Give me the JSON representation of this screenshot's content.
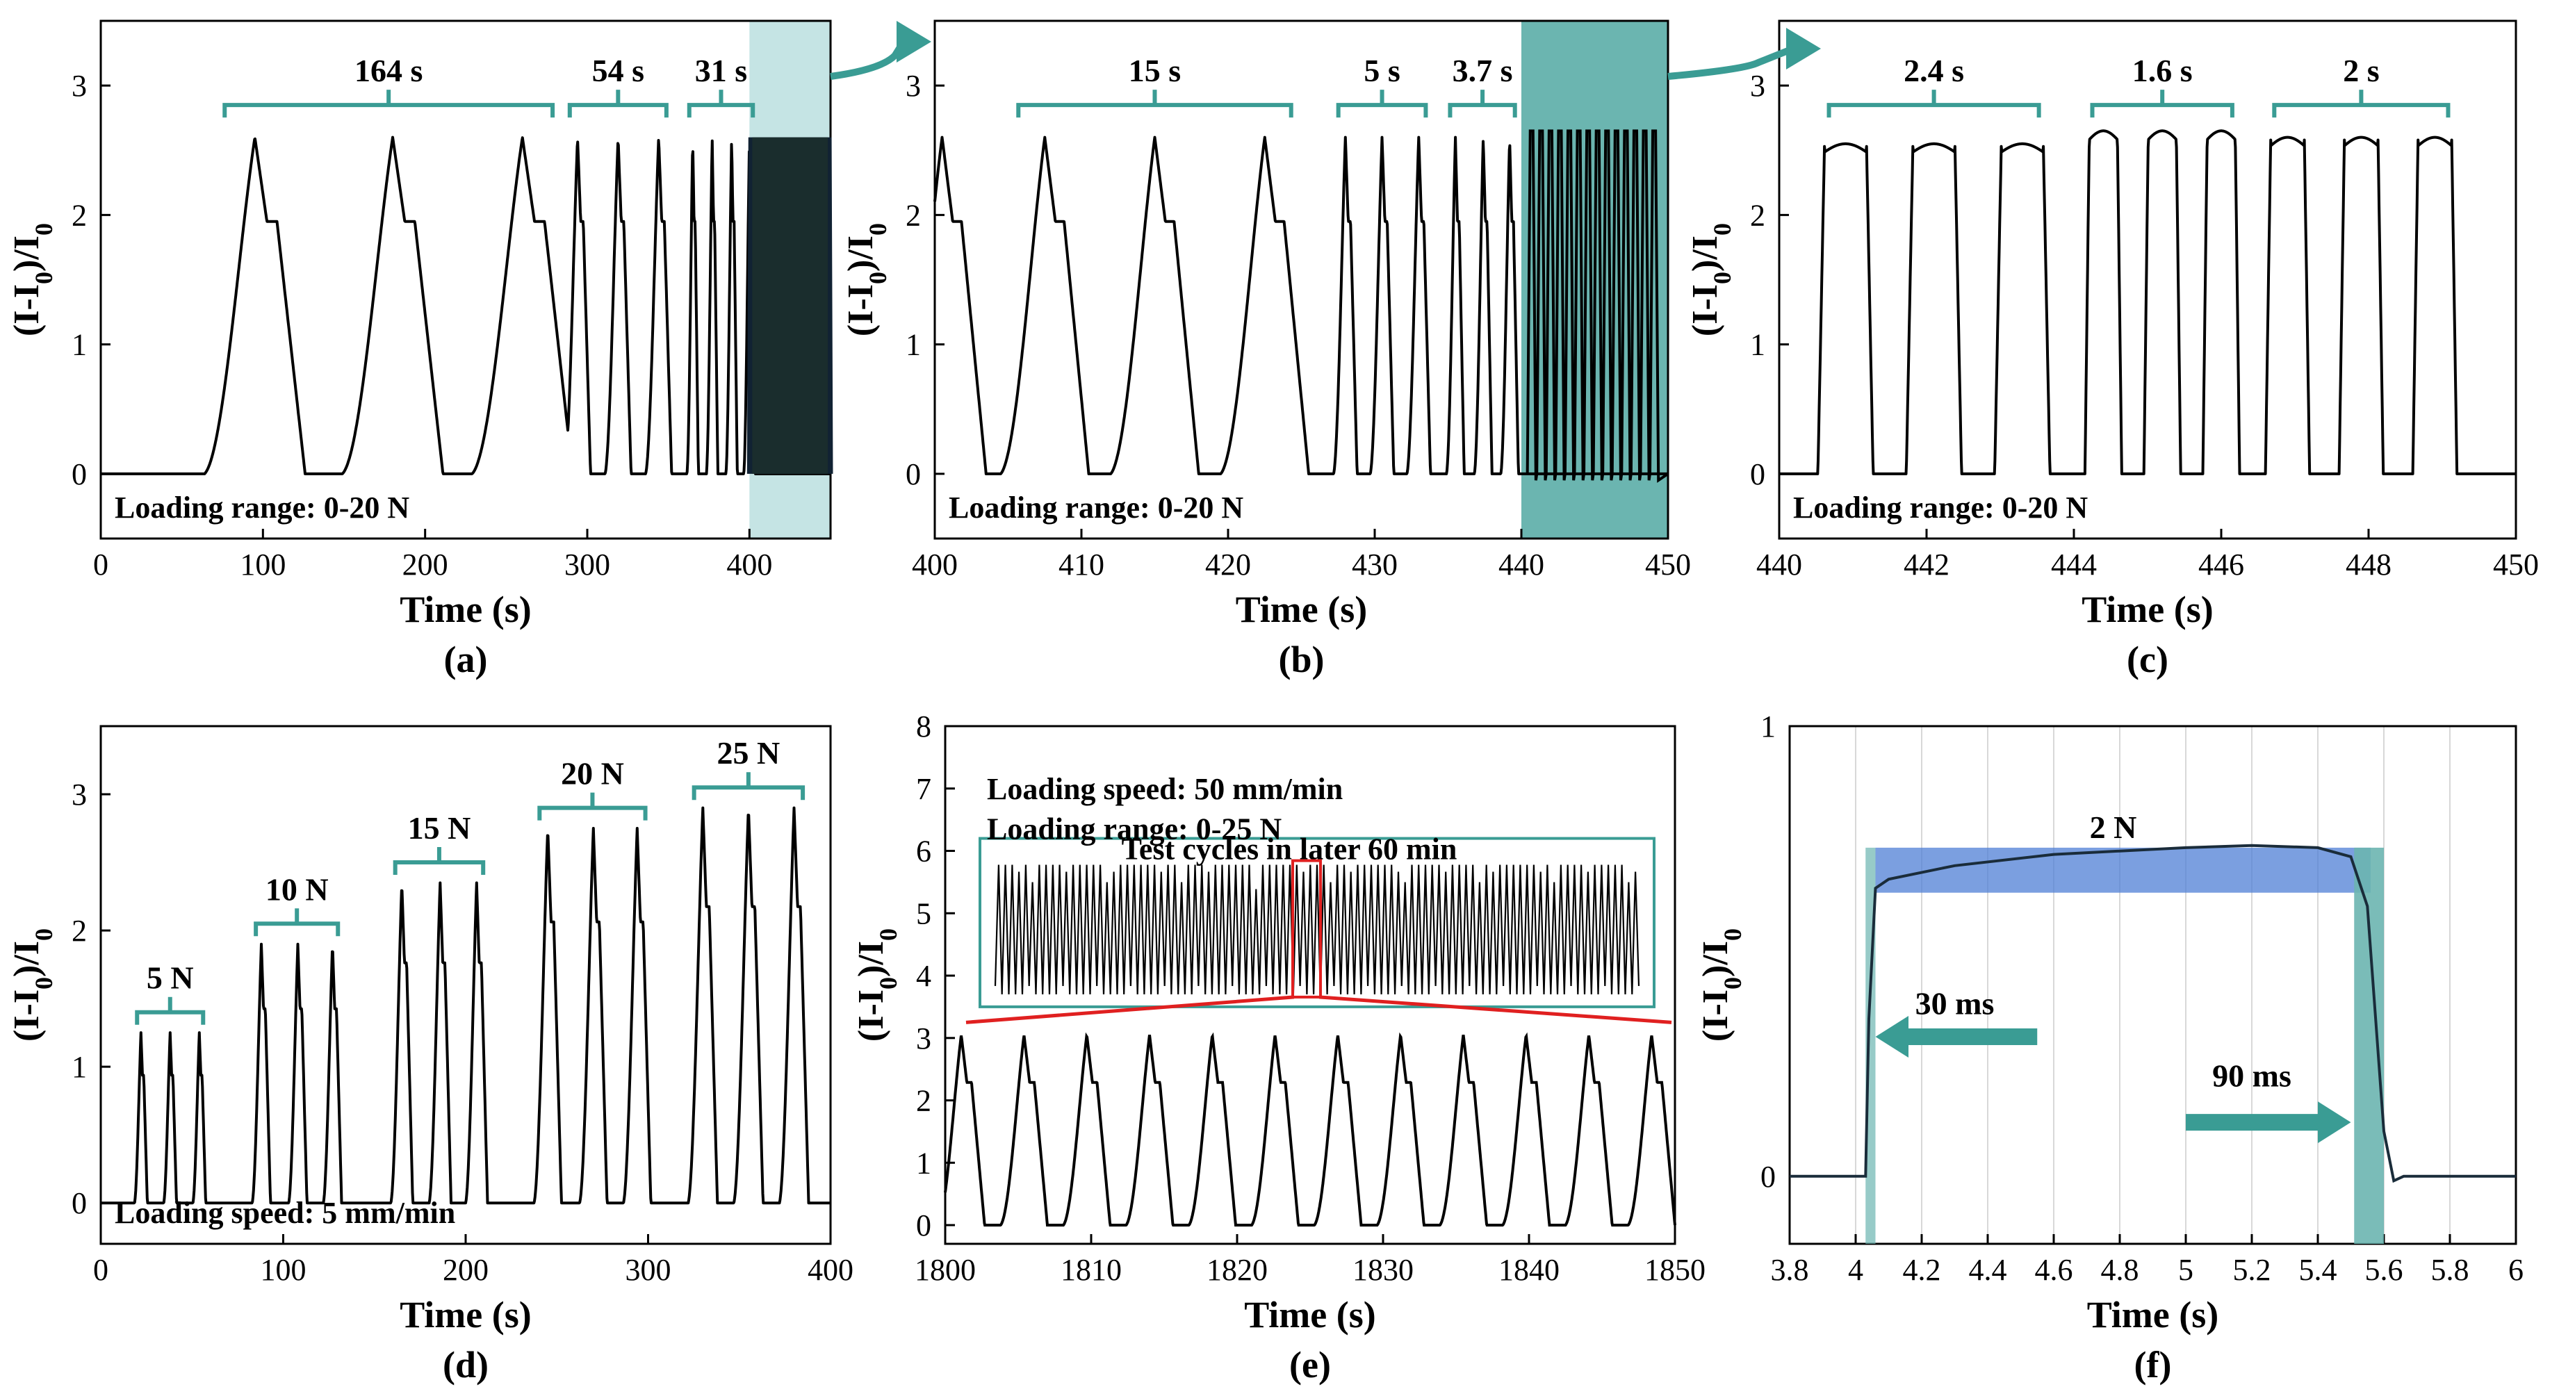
{
  "figure": {
    "theme_colors": {
      "bracket": "#3a9c94",
      "shade_light": "#c5e4e4",
      "shade_dark": "#6bb5b0",
      "red": "#e02020",
      "blue": "#4f7fd6"
    }
  },
  "chart_data": [
    {
      "panel": "(a)",
      "type": "line",
      "xlabel": "Time (s)",
      "ylabel": "(I-I0)/I0",
      "xlim": [
        0,
        450
      ],
      "ylim": [
        -0.5,
        3.5
      ],
      "xticks": [
        0,
        100,
        200,
        300,
        400
      ],
      "yticks": [
        0,
        1,
        2,
        3
      ],
      "annotation": "Loading range: 0-20 N",
      "groups": [
        {
          "label": "164 s",
          "cycle_centers": [
            95,
            180,
            260
          ],
          "width": 62,
          "peak": 2.6
        },
        {
          "label": "54 s",
          "cycle_centers": [
            294,
            319,
            344
          ],
          "width": 16,
          "peak": 2.6
        },
        {
          "label": "31 s",
          "cycle_centers": [
            365,
            377,
            389,
            400
          ],
          "width": 7,
          "peak": 2.6
        }
      ],
      "shaded_x": [
        400,
        450
      ],
      "dense_region": {
        "x": [
          400,
          450
        ],
        "y": [
          0,
          2.6
        ]
      },
      "series": [
        {
          "values": "cycles described by groups"
        }
      ]
    },
    {
      "panel": "(b)",
      "type": "line",
      "xlabel": "Time (s)",
      "ylabel": "(I-I0)/I0",
      "xlim": [
        400,
        450
      ],
      "ylim": [
        -0.5,
        3.5
      ],
      "xticks": [
        400,
        410,
        420,
        430,
        440,
        450
      ],
      "yticks": [
        0,
        1,
        2,
        3
      ],
      "annotation": "Loading range: 0-20 N",
      "groups": [
        {
          "label": "15 s",
          "cycle_centers": [
            407.5,
            415,
            422.5
          ],
          "width": 6,
          "peak": 2.6
        },
        {
          "label": "5 s",
          "cycle_centers": [
            428,
            430.5,
            433
          ],
          "width": 1.6,
          "peak": 2.6
        },
        {
          "label": "3.7 s",
          "cycle_centers": [
            435.5,
            437.4,
            439.2
          ],
          "width": 1.2,
          "peak": 2.6
        }
      ],
      "shaded_x": [
        440,
        450
      ],
      "dense_region": {
        "x": [
          440,
          450
        ],
        "cycles": 14,
        "peak": 2.65
      }
    },
    {
      "panel": "(c)",
      "type": "line",
      "xlabel": "Time (s)",
      "ylabel": "(I-I0)/I0",
      "xlim": [
        440,
        450
      ],
      "ylim": [
        -0.5,
        3.5
      ],
      "xticks": [
        440,
        442,
        444,
        446,
        448,
        450
      ],
      "yticks": [
        0,
        1,
        2,
        3
      ],
      "annotation": "Loading range: 0-20 N",
      "groups": [
        {
          "label": "2.4 s",
          "cycle_centers": [
            440.9,
            442.1,
            443.3
          ],
          "width": 0.75,
          "peak": 2.55
        },
        {
          "label": "1.6 s",
          "cycle_centers": [
            444.4,
            445.2,
            446.0
          ],
          "width": 0.5,
          "peak": 2.65
        },
        {
          "label": "2 s",
          "cycle_centers": [
            446.9,
            447.9,
            448.9
          ],
          "width": 0.6,
          "peak": 2.6
        }
      ]
    },
    {
      "panel": "(d)",
      "type": "line",
      "xlabel": "Time (s)",
      "ylabel": "(I-I0)/I0",
      "xlim": [
        0,
        400
      ],
      "ylim": [
        -0.3,
        3.5
      ],
      "xticks": [
        0,
        100,
        200,
        300,
        400
      ],
      "yticks": [
        0,
        1,
        2,
        3
      ],
      "annotation": "Loading speed: 5 mm/min",
      "groups": [
        {
          "label": "5 N",
          "cycle_centers": [
            22,
            38,
            54
          ],
          "width": 7,
          "peak": 1.25
        },
        {
          "label": "10 N",
          "cycle_centers": [
            88,
            108,
            127
          ],
          "width": 10,
          "peak": 1.9
        },
        {
          "label": "15 N",
          "cycle_centers": [
            165,
            186,
            206
          ],
          "width": 12,
          "peak": 2.35
        },
        {
          "label": "20 N",
          "cycle_centers": [
            245,
            270,
            294
          ],
          "width": 15,
          "peak": 2.75
        },
        {
          "label": "25 N",
          "cycle_centers": [
            330,
            355,
            380
          ],
          "width": 16,
          "peak": 2.9
        }
      ]
    },
    {
      "panel": "(e)",
      "type": "line",
      "xlabel": "Time (s)",
      "ylabel": "(I-I0)/I0",
      "xlim": [
        1800,
        1850
      ],
      "ylim": [
        -0.3,
        8
      ],
      "xticks": [
        1800,
        1810,
        1820,
        1830,
        1840,
        1850
      ],
      "yticks": [
        0,
        1,
        2,
        3,
        4,
        5,
        6,
        7,
        8
      ],
      "annotations": [
        "Loading speed: 50 mm/min",
        "Loading range: 0-25 N"
      ],
      "inset_title": "Test cycles in later 60 min",
      "cycles": {
        "first_peak": 1800.5,
        "period": 4.3,
        "count": 12,
        "peak": 3.05
      }
    },
    {
      "panel": "(f)",
      "type": "line",
      "xlabel": "Time (s)",
      "ylabel": "(I-I0)/I0",
      "xlim": [
        3.8,
        6.0
      ],
      "ylim": [
        -0.15,
        1.0
      ],
      "xticks": [
        3.8,
        4.0,
        4.2,
        4.4,
        4.6,
        4.8,
        5.0,
        5.2,
        5.4,
        5.6,
        5.8,
        6.0
      ],
      "yticks": [
        0,
        1
      ],
      "label_2N": "2 N",
      "response_time": "30 ms",
      "recovery_time": "90 ms",
      "response_band_x": [
        4.03,
        4.06
      ],
      "recovery_band_x": [
        5.51,
        5.6
      ],
      "plateau_band": {
        "x": [
          4.06,
          5.56
        ],
        "y": [
          0.63,
          0.73
        ]
      },
      "x": [
        3.8,
        4.03,
        4.04,
        4.06,
        4.1,
        4.3,
        4.6,
        5.0,
        5.2,
        5.4,
        5.5,
        5.55,
        5.6,
        5.63,
        5.66,
        5.8,
        6.0
      ],
      "values": [
        0.0,
        0.0,
        0.35,
        0.64,
        0.66,
        0.69,
        0.715,
        0.73,
        0.735,
        0.73,
        0.71,
        0.6,
        0.1,
        -0.01,
        0.0,
        0.0,
        0.0
      ]
    }
  ]
}
